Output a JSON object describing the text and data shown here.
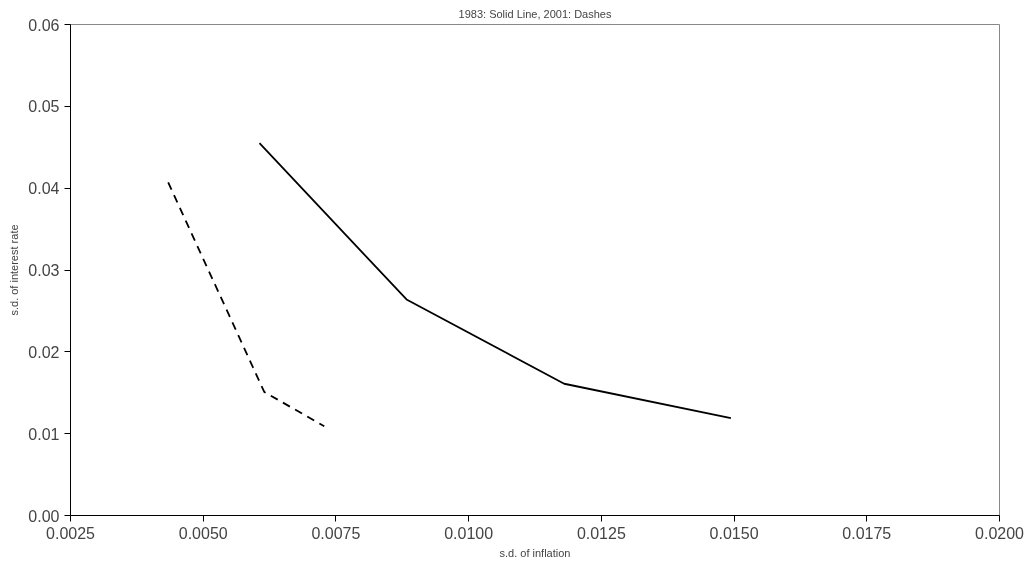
{
  "chart_data": {
    "type": "line",
    "title": "1983: Solid Line, 2001: Dashes",
    "xlabel": "s.d. of inflation",
    "ylabel": "s.d. of interest rate",
    "series": [
      {
        "color": "#000000",
        "line_style": "solid",
        "x": [
          0.00606,
          0.00883,
          0.0118,
          0.01494
        ],
        "values": [
          0.0455,
          0.0264,
          0.0161,
          0.0119
        ]
      },
      {
        "color": "#000000",
        "line_style": "dashed",
        "x": [
          0.00434,
          0.00615,
          0.00728
        ],
        "values": [
          0.0407,
          0.0151,
          0.0109
        ]
      }
    ],
    "xlim": [
      0.0025,
      0.02
    ],
    "ylim": [
      0,
      0.06
    ],
    "xticks": [
      {
        "value": 0.0025,
        "label": "0.0025"
      },
      {
        "value": 0.005,
        "label": "0.0050"
      },
      {
        "value": 0.0075,
        "label": "0.0075"
      },
      {
        "value": 0.01,
        "label": "0.0100"
      },
      {
        "value": 0.0125,
        "label": "0.0125"
      },
      {
        "value": 0.015,
        "label": "0.0150"
      },
      {
        "value": 0.0175,
        "label": "0.0175"
      },
      {
        "value": 0.02,
        "label": "0.0200"
      }
    ],
    "yticks": [
      {
        "value": 0,
        "label": "0.00"
      },
      {
        "value": 0.01,
        "label": "0.01"
      },
      {
        "value": 0.02,
        "label": "0.02"
      },
      {
        "value": 0.03,
        "label": "0.03"
      },
      {
        "value": 0.04,
        "label": "0.04"
      },
      {
        "value": 0.05,
        "label": "0.05"
      },
      {
        "value": 0.06,
        "label": "0.06"
      }
    ],
    "grid": false,
    "marker": "none"
  }
}
